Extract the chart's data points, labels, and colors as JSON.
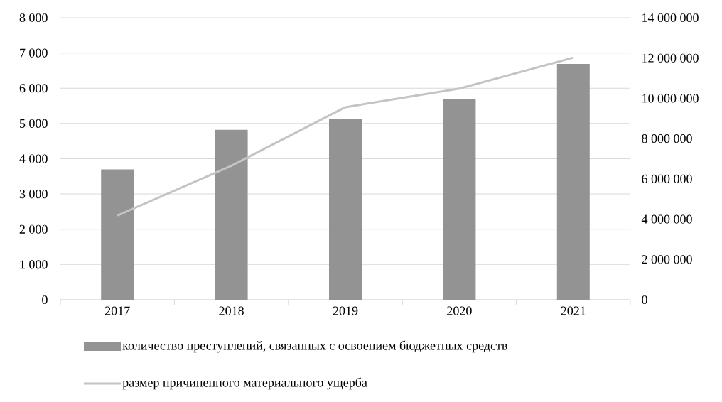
{
  "chart_data": {
    "type": "bar",
    "categories": [
      "2017",
      "2018",
      "2019",
      "2020",
      "2021"
    ],
    "series": [
      {
        "name": "количество преступлений, связанных с освоением бюджетных средств",
        "color": "#939393",
        "values": [
          3700,
          4820,
          5130,
          5690,
          6690
        ]
      },
      {
        "name": "размер причиненного материального ущерба",
        "type": "line",
        "axis": "y2",
        "color": "#c4c4c4",
        "values": [
          4180000,
          6650000,
          9560000,
          10480000,
          12020000
        ]
      }
    ],
    "ylim": [
      0,
      8000
    ],
    "yticks": [
      0,
      {
        "value": 1000,
        "label": "1 000"
      },
      {
        "value": 2000,
        "label": "2 000"
      },
      {
        "value": 3000,
        "label": "3 000"
      },
      {
        "value": 4000,
        "label": "4 000"
      },
      {
        "value": 5000,
        "label": "5 000"
      },
      {
        "value": 6000,
        "label": "6 000"
      },
      {
        "value": 7000,
        "label": "7 000"
      },
      {
        "value": 8000,
        "label": "8 000"
      }
    ],
    "y2lim": [
      0,
      14000000
    ],
    "y2ticks": [
      0,
      {
        "value": 2000000,
        "label": "2 000 000"
      },
      {
        "value": 4000000,
        "label": "4 000 000"
      },
      {
        "value": 6000000,
        "label": "6 000 000"
      },
      {
        "value": 8000000,
        "label": "8 000 000"
      },
      {
        "value": 10000000,
        "label": "10 000 000"
      },
      {
        "value": 12000000,
        "label": "12 000 000"
      },
      {
        "value": 14000000,
        "label": "14 000 000"
      }
    ],
    "grid": "y",
    "legend": "bottom"
  }
}
